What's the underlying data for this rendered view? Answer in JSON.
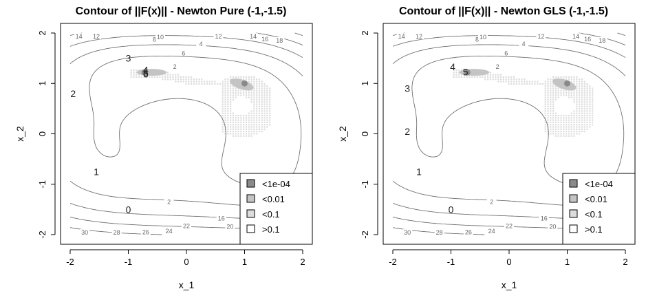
{
  "colors": {
    "contour": "#6f6f6f",
    "region_dark": "#8a8a8a",
    "region_mid": "#c4c4c4",
    "region_light": "#dcdcdc",
    "region_none": "#ffffff"
  },
  "chart_data": [
    {
      "type": "contour",
      "title": "Contour of ||F(x)|| - Newton Pure (-1,-1.5)",
      "xlabel": "x_1",
      "ylabel": "x_2",
      "xlim": [
        -2,
        2
      ],
      "ylim": [
        -2,
        2
      ],
      "xticks": [
        -2,
        -1,
        0,
        1,
        2
      ],
      "yticks": [
        -2,
        -1,
        0,
        1,
        2
      ],
      "contour_levels": [
        "2",
        "4",
        "6",
        "8",
        "10",
        "12",
        "14",
        "16",
        "18",
        "20",
        "22",
        "24",
        "26",
        "28",
        "30"
      ],
      "legend": {
        "position": "bottom-right",
        "entries": [
          {
            "label": "<1e-04",
            "color": "#8a8a8a"
          },
          {
            "label": "<0.01",
            "color": "#c4c4c4"
          },
          {
            "label": "<0.1",
            "color": "#dcdcdc"
          },
          {
            "label": ">0.1",
            "color": "#ffffff"
          }
        ]
      },
      "iterates": [
        {
          "label": "0",
          "x": -1.0,
          "y": -1.5
        },
        {
          "label": "1",
          "x": -1.55,
          "y": -0.75
        },
        {
          "label": "2",
          "x": -1.95,
          "y": 0.8
        },
        {
          "label": "3",
          "x": -1.0,
          "y": 1.5
        },
        {
          "label": "4",
          "x": -0.7,
          "y": 1.27
        },
        {
          "label": "5",
          "x": -0.7,
          "y": 1.21
        },
        {
          "label": "6",
          "x": -0.7,
          "y": 1.19
        }
      ],
      "solutions": [
        {
          "x": -0.72,
          "y": 1.22
        },
        {
          "x": 1.0,
          "y": 1.0
        }
      ]
    },
    {
      "type": "contour",
      "title": "Contour of ||F(x)|| - Newton GLS (-1,-1.5)",
      "xlabel": "x_1",
      "ylabel": "x_2",
      "xlim": [
        -2,
        2
      ],
      "ylim": [
        -2,
        2
      ],
      "xticks": [
        -2,
        -1,
        0,
        1,
        2
      ],
      "yticks": [
        -2,
        -1,
        0,
        1,
        2
      ],
      "contour_levels": [
        "2",
        "4",
        "6",
        "8",
        "10",
        "12",
        "14",
        "16",
        "18",
        "20",
        "22",
        "24",
        "26",
        "28",
        "30"
      ],
      "legend": {
        "position": "bottom-right",
        "entries": [
          {
            "label": "<1e-04",
            "color": "#8a8a8a"
          },
          {
            "label": "<0.01",
            "color": "#c4c4c4"
          },
          {
            "label": "<0.1",
            "color": "#dcdcdc"
          },
          {
            "label": ">0.1",
            "color": "#ffffff"
          }
        ]
      },
      "iterates": [
        {
          "label": "0",
          "x": -1.0,
          "y": -1.5
        },
        {
          "label": "1",
          "x": -1.55,
          "y": -0.75
        },
        {
          "label": "2",
          "x": -1.75,
          "y": 0.05
        },
        {
          "label": "3",
          "x": -1.75,
          "y": 0.9
        },
        {
          "label": "4",
          "x": -0.97,
          "y": 1.33
        },
        {
          "label": "5",
          "x": -0.75,
          "y": 1.23
        }
      ],
      "solutions": [
        {
          "x": -0.72,
          "y": 1.22
        },
        {
          "x": 1.0,
          "y": 1.0
        }
      ]
    }
  ]
}
